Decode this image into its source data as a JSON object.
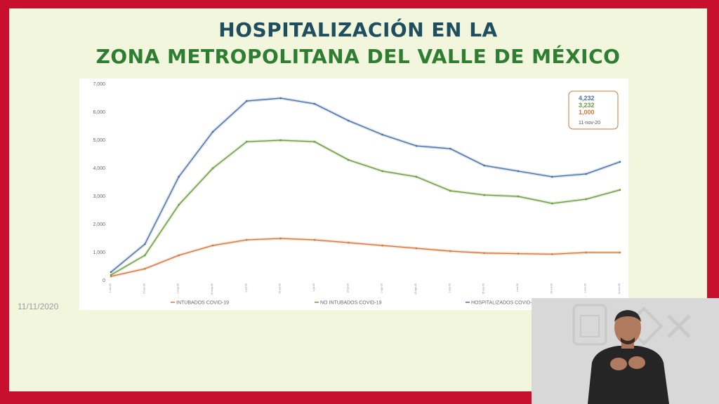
{
  "slide": {
    "title_line1": "HOSPITALIZACIÓN EN LA",
    "title_line2": "ZONA METROPOLITANA DEL VALLE DE MÉXICO",
    "date_stamp": "11/11/2020",
    "frame_color": "#c8102e",
    "background_color": "#f1f6dc"
  },
  "chart_data": {
    "type": "line",
    "title": "",
    "xlabel": "",
    "ylabel": "",
    "ylim": [
      0,
      7000
    ],
    "yticks": [
      "0",
      "1,000",
      "2,000",
      "3,000",
      "4,000",
      "5,000",
      "6,000",
      "7,000"
    ],
    "grid": false,
    "x": [
      "1-abr-20",
      "15-abr-20",
      "1-may-20",
      "15-may-20",
      "1-jun-20",
      "15-jun-20",
      "1-jul-20",
      "15-jul-20",
      "1-ago-20",
      "15-ago-20",
      "1-sep-20",
      "15-sep-20",
      "1-oct-20",
      "15-oct-20",
      "1-nov-20",
      "11-nov-20"
    ],
    "series": [
      {
        "name": "HOSPITALIZADOS COVID-19",
        "color": "#4a6fa5",
        "values": [
          300,
          1300,
          3700,
          5300,
          6400,
          6500,
          6300,
          5700,
          5200,
          4800,
          4700,
          4100,
          3900,
          3700,
          3800,
          4232
        ]
      },
      {
        "name": "NO INTUBADOS COVID-19",
        "color": "#6a9a3a",
        "values": [
          200,
          900,
          2700,
          4000,
          4950,
          5000,
          4950,
          4300,
          3900,
          3700,
          3200,
          3050,
          3000,
          2750,
          2900,
          3232
        ]
      },
      {
        "name": "INTUBADOS COVID-19",
        "color": "#d2773a",
        "values": [
          150,
          420,
          900,
          1250,
          1450,
          1500,
          1450,
          1350,
          1250,
          1150,
          1050,
          980,
          960,
          940,
          1000,
          1000
        ]
      }
    ],
    "legend_entries": [
      "INTUBADOS COVID-19",
      "NO INTUBADOS COVID-19",
      "HOSPITALIZADOS COVID-19"
    ],
    "legend_placement": "bottom",
    "callout": {
      "values": [
        "4,232",
        "3,232",
        "1,000"
      ],
      "colors": [
        "#4a6fa5",
        "#6a9a3a",
        "#d2773a"
      ],
      "date": "11-nov-20"
    }
  }
}
